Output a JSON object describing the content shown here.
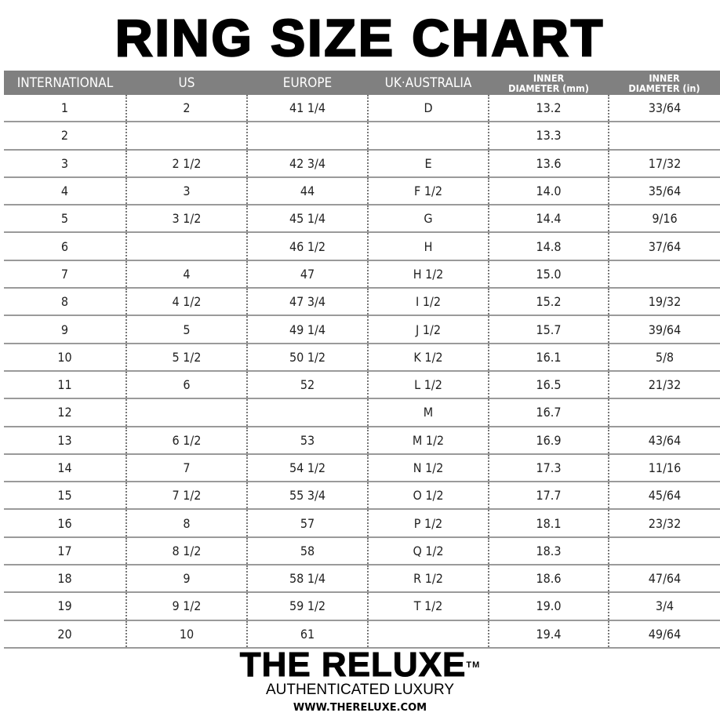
{
  "title": "RING SIZE CHART",
  "colors": {
    "header_bg": "#808080",
    "header_text": "#ffffff",
    "row_divider": "#9a9a9a"
  },
  "table": {
    "headers": [
      "INTERNATIONAL",
      "US",
      "EUROPE",
      "UK·AUSTRALIA",
      "INNER DIAMETER (mm)",
      "INNER DIAMETER (in)"
    ],
    "header_lines": {
      "inner": "INNER",
      "mm": "DIAMETER (mm)",
      "in": "DIAMETER (in)"
    },
    "rows": [
      [
        "1",
        "2",
        "41 1/4",
        "D",
        "13.2",
        "33/64"
      ],
      [
        "2",
        "",
        "",
        "",
        "13.3",
        ""
      ],
      [
        "3",
        "2 1/2",
        "42 3/4",
        "E",
        "13.6",
        "17/32"
      ],
      [
        "4",
        "3",
        "44",
        "F 1/2",
        "14.0",
        "35/64"
      ],
      [
        "5",
        "3 1/2",
        "45 1/4",
        "G",
        "14.4",
        "9/16"
      ],
      [
        "6",
        "",
        "46 1/2",
        "H",
        "14.8",
        "37/64"
      ],
      [
        "7",
        "4",
        "47",
        "H 1/2",
        "15.0",
        ""
      ],
      [
        "8",
        "4 1/2",
        "47 3/4",
        "I 1/2",
        "15.2",
        "19/32"
      ],
      [
        "9",
        "5",
        "49 1/4",
        "J 1/2",
        "15.7",
        "39/64"
      ],
      [
        "10",
        "5 1/2",
        "50 1/2",
        "K 1/2",
        "16.1",
        "5/8"
      ],
      [
        "11",
        "6",
        "52",
        "L 1/2",
        "16.5",
        "21/32"
      ],
      [
        "12",
        "",
        "",
        "M",
        "16.7",
        ""
      ],
      [
        "13",
        "6 1/2",
        "53",
        "M 1/2",
        "16.9",
        "43/64"
      ],
      [
        "14",
        "7",
        "54 1/2",
        "N 1/2",
        "17.3",
        "11/16"
      ],
      [
        "15",
        "7 1/2",
        "55 3/4",
        "O 1/2",
        "17.7",
        "45/64"
      ],
      [
        "16",
        "8",
        "57",
        "P 1/2",
        "18.1",
        "23/32"
      ],
      [
        "17",
        "8 1/2",
        "58",
        "Q 1/2",
        "18.3",
        ""
      ],
      [
        "18",
        "9",
        "58 1/4",
        "R 1/2",
        "18.6",
        "47/64"
      ],
      [
        "19",
        "9 1/2",
        "59 1/2",
        "T 1/2",
        "19.0",
        "3/4"
      ],
      [
        "20",
        "10",
        "61",
        "",
        "19.4",
        "49/64"
      ]
    ]
  },
  "brand": {
    "name": "THE RELUXE",
    "trademark": "TM",
    "tagline": "AUTHENTICATED LUXURY",
    "url": "WWW.THERELUXE.COM"
  }
}
